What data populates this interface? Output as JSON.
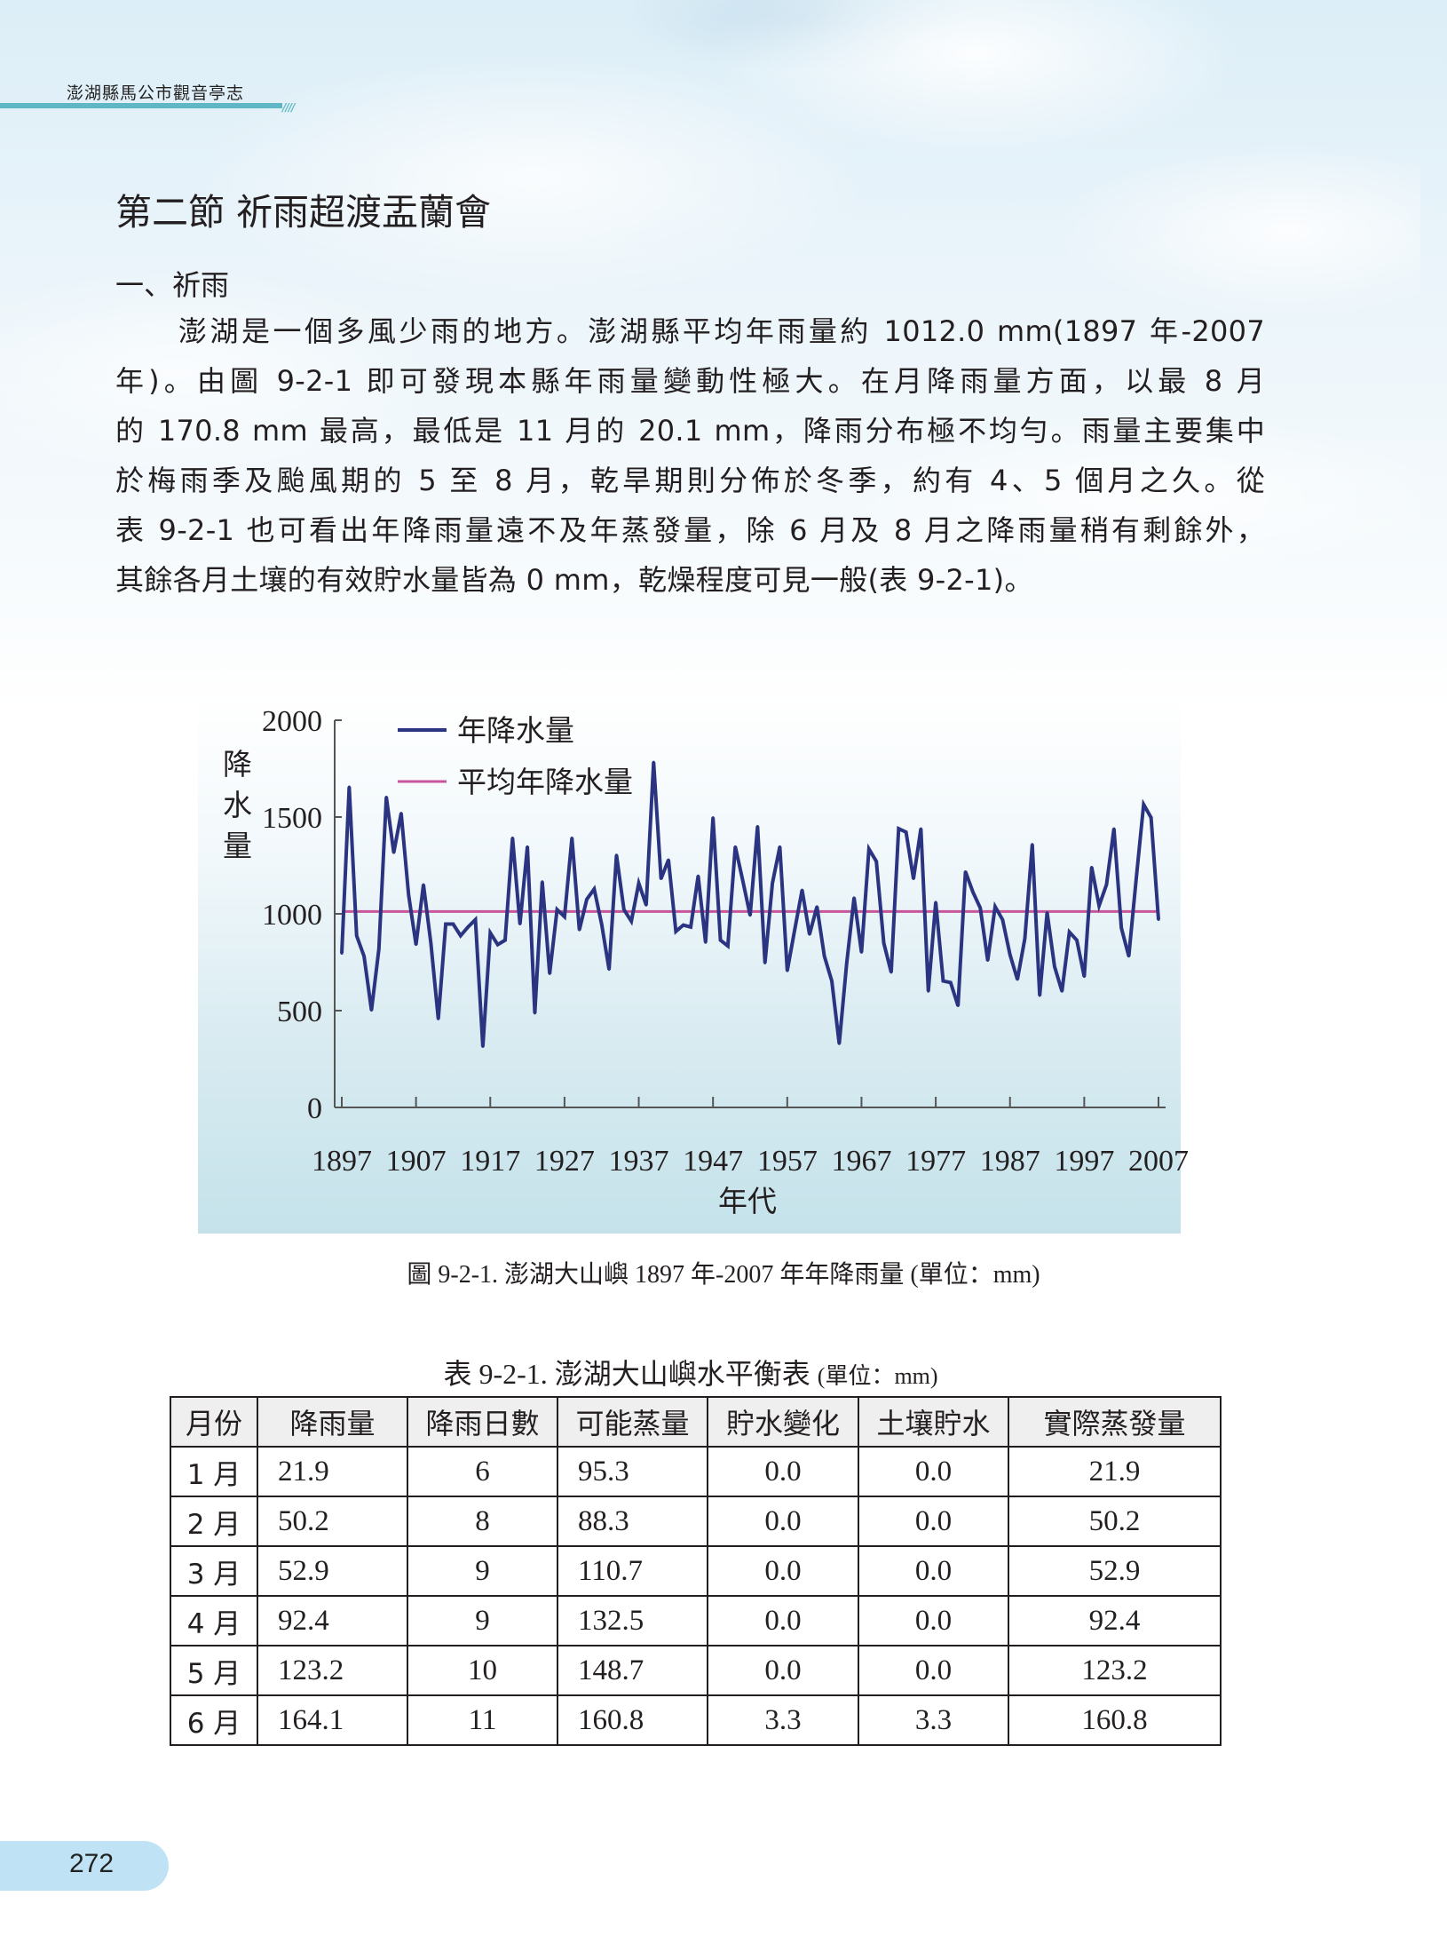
{
  "header": {
    "book_title": "澎湖縣馬公市觀音亭志",
    "slashes": "////"
  },
  "section": {
    "title": "第二節  祈雨超渡盂蘭會",
    "subheading": "一、祈雨",
    "paragraph_lines": [
      "　　澎湖是一個多風少雨的地方。澎湖縣平均年雨量約 1012.0 mm(1897 年-2007",
      "年)。由圖  9-2-1 即可發現本縣年雨量變動性極大。在月降雨量方面，以最 8 月",
      "的 170.8 mm 最高，最低是 11 月的 20.1 mm，降雨分布極不均勻。雨量主要集中",
      "於梅雨季及颱風期的 5 至 8 月，乾旱期則分佈於冬季，約有 4、5 個月之久。從",
      "表 9-2-1 也可看出年降雨量遠不及年蒸發量，除 6 月及 8 月之降雨量稍有剩餘外，",
      "其餘各月土壤的有效貯水量皆為 0 mm，乾燥程度可見一般(表  9-2-1)。"
    ]
  },
  "chart_data": {
    "type": "line",
    "title": "",
    "xlabel": "年代",
    "ylabel": "降水量",
    "ylim": [
      0,
      2000
    ],
    "yticks": [
      "0",
      "500",
      "1000",
      "1500",
      "2000"
    ],
    "xticks": [
      "1897",
      "1907",
      "1917",
      "1927",
      "1937",
      "1947",
      "1957",
      "1967",
      "1977",
      "1987",
      "1997",
      "2007"
    ],
    "grid": false,
    "legend_position": "top-left",
    "x_start": 1897,
    "x_end": 2007,
    "series": [
      {
        "name": "年降水量",
        "color": "#2b3481",
        "values": [
          796,
          1656,
          887,
          781,
          502,
          819,
          1603,
          1316,
          1520,
          1098,
          841,
          1151,
          849,
          457,
          947,
          947,
          887,
          932,
          970,
          314,
          902,
          841,
          864,
          1392,
          947,
          1347,
          487,
          1166,
          691,
          1022,
          985,
          1392,
          917,
          1075,
          1128,
          947,
          713,
          1304,
          1022,
          962,
          1158,
          1045,
          1784,
          1181,
          1279,
          909,
          942,
          932,
          1196,
          852,
          1497,
          864,
          834,
          1347,
          1173,
          992,
          1452,
          746,
          1158,
          1347,
          706,
          917,
          1123,
          894,
          1037,
          781,
          653,
          329,
          743,
          1083,
          801,
          1335,
          1271,
          849,
          698,
          1440,
          1422,
          1181,
          1440,
          600,
          1060,
          653,
          645,
          525,
          1218,
          1113,
          1030,
          759,
          1037,
          970,
          789,
          661,
          872,
          1359,
          578,
          1007,
          728,
          600,
          906,
          864,
          676,
          1241,
          1042,
          1151,
          1440,
          927,
          781,
          1181,
          1565,
          1497,
          970
        ]
      },
      {
        "name": "平均年降水量",
        "color": "#c9559a",
        "value": 1012.0
      }
    ]
  },
  "figure_caption": "圖  9-2-1.  澎湖大山嶼 1897 年-2007 年年降雨量  (單位：mm)",
  "table": {
    "title": "表  9-2-1.  澎湖大山嶼水平衡表",
    "unit": "(單位：mm)",
    "headers": [
      "月份",
      "降雨量",
      "降雨日數",
      "可能蒸量",
      "貯水變化",
      "土壤貯水",
      "實際蒸發量"
    ],
    "rows": [
      [
        "1 月",
        "21.9",
        "6",
        "95.3",
        "0.0",
        "0.0",
        "21.9"
      ],
      [
        "2 月",
        "50.2",
        "8",
        "88.3",
        "0.0",
        "0.0",
        "50.2"
      ],
      [
        "3 月",
        "52.9",
        "9",
        "110.7",
        "0.0",
        "0.0",
        "52.9"
      ],
      [
        "4 月",
        "92.4",
        "9",
        "132.5",
        "0.0",
        "0.0",
        "92.4"
      ],
      [
        "5 月",
        "123.2",
        "10",
        "148.7",
        "0.0",
        "0.0",
        "123.2"
      ],
      [
        "6 月",
        "164.1",
        "11",
        "160.8",
        "3.3",
        "3.3",
        "160.8"
      ]
    ]
  },
  "page_number": "272"
}
